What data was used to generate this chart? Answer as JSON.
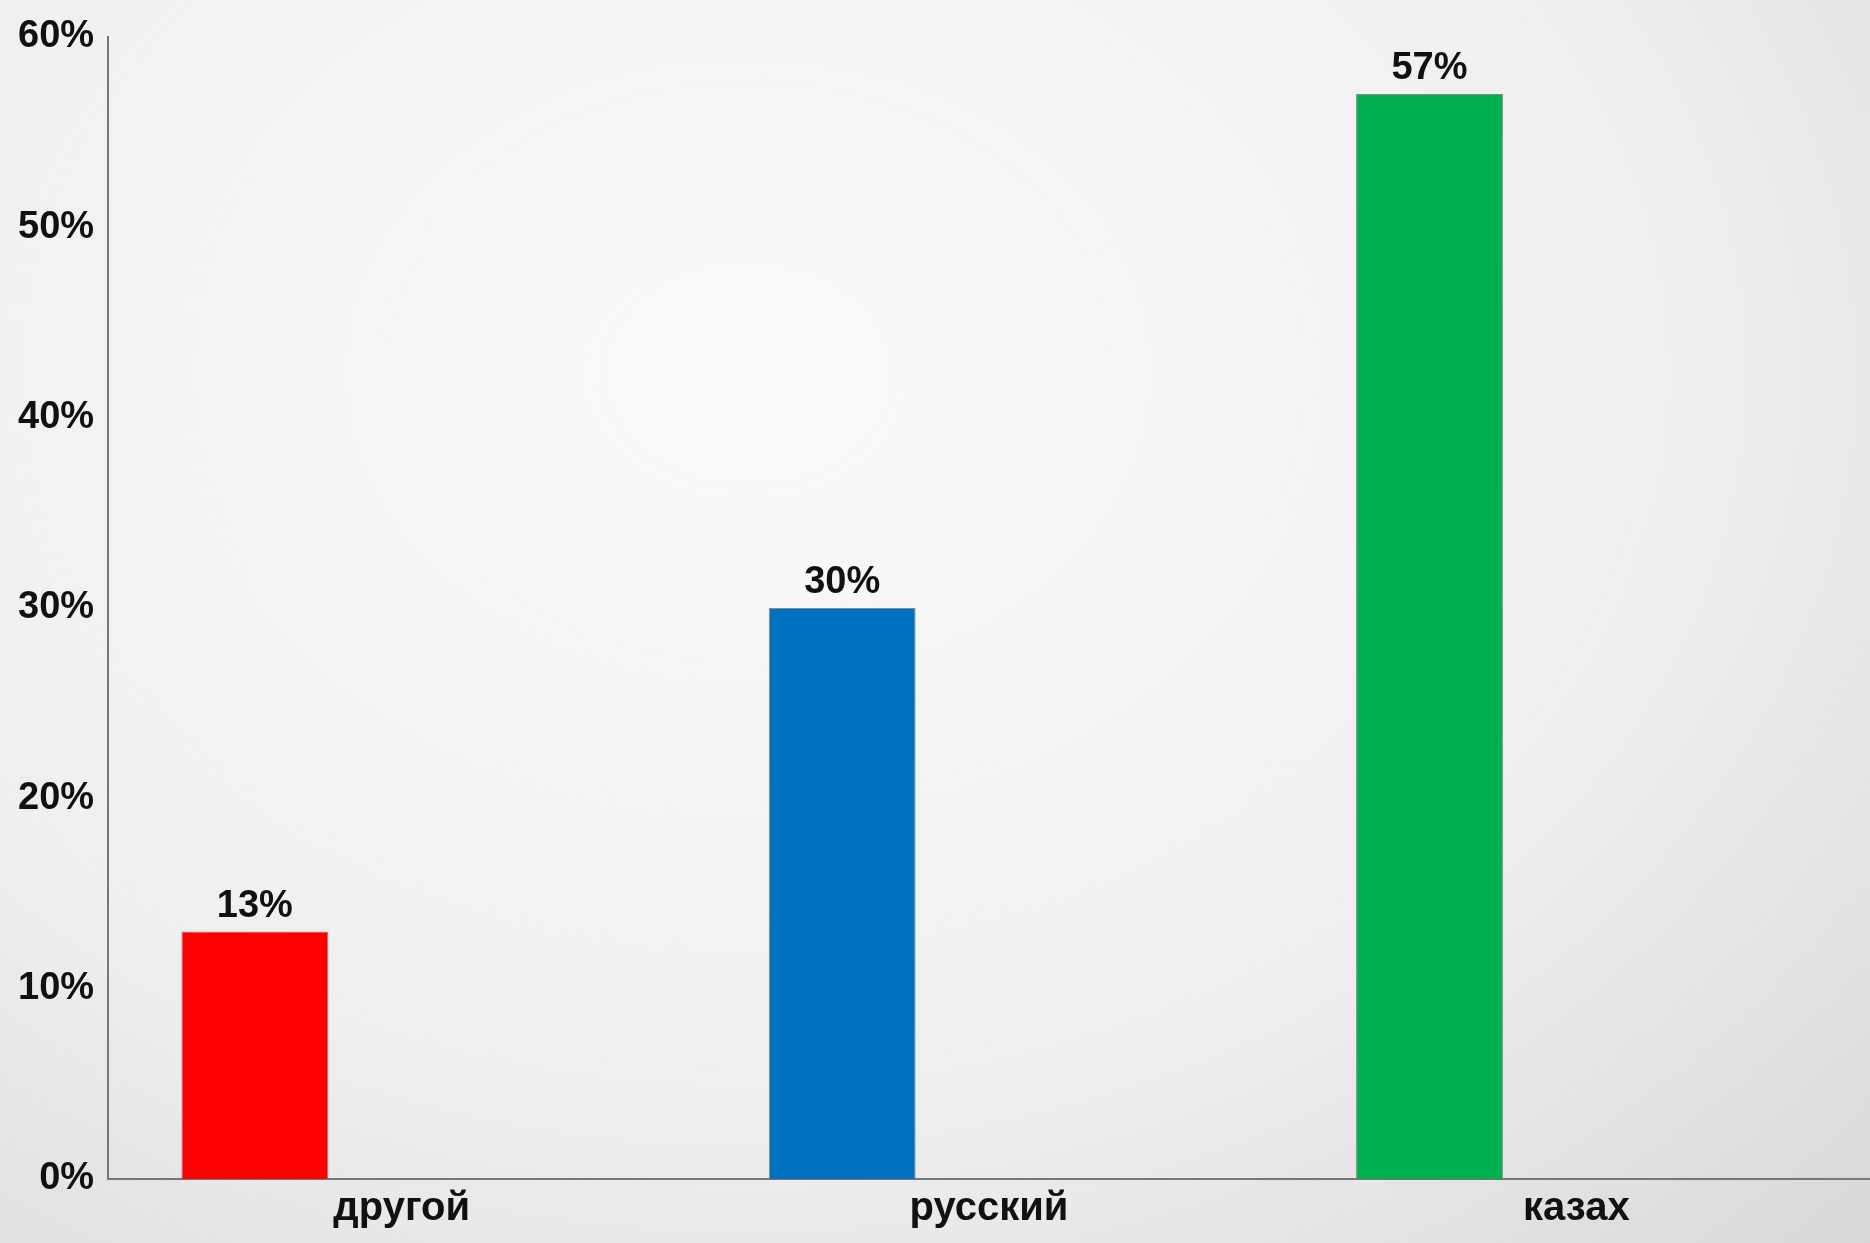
{
  "chart_data": {
    "type": "bar",
    "categories": [
      "другой",
      "русский",
      "казах"
    ],
    "values": [
      13,
      30,
      57
    ],
    "colors": [
      "#ff0000",
      "#0070c0",
      "#00b050"
    ],
    "value_labels": [
      "13%",
      "30%",
      "57%"
    ],
    "ylim": [
      0,
      60
    ],
    "yticks": [
      {
        "value": 0,
        "label": "0%"
      },
      {
        "value": 10,
        "label": "10%"
      },
      {
        "value": 20,
        "label": "20%"
      },
      {
        "value": 30,
        "label": "30%"
      },
      {
        "value": 40,
        "label": "40%"
      },
      {
        "value": 50,
        "label": "50%"
      },
      {
        "value": 60,
        "label": "60%"
      }
    ],
    "grid": false,
    "legend": false
  }
}
